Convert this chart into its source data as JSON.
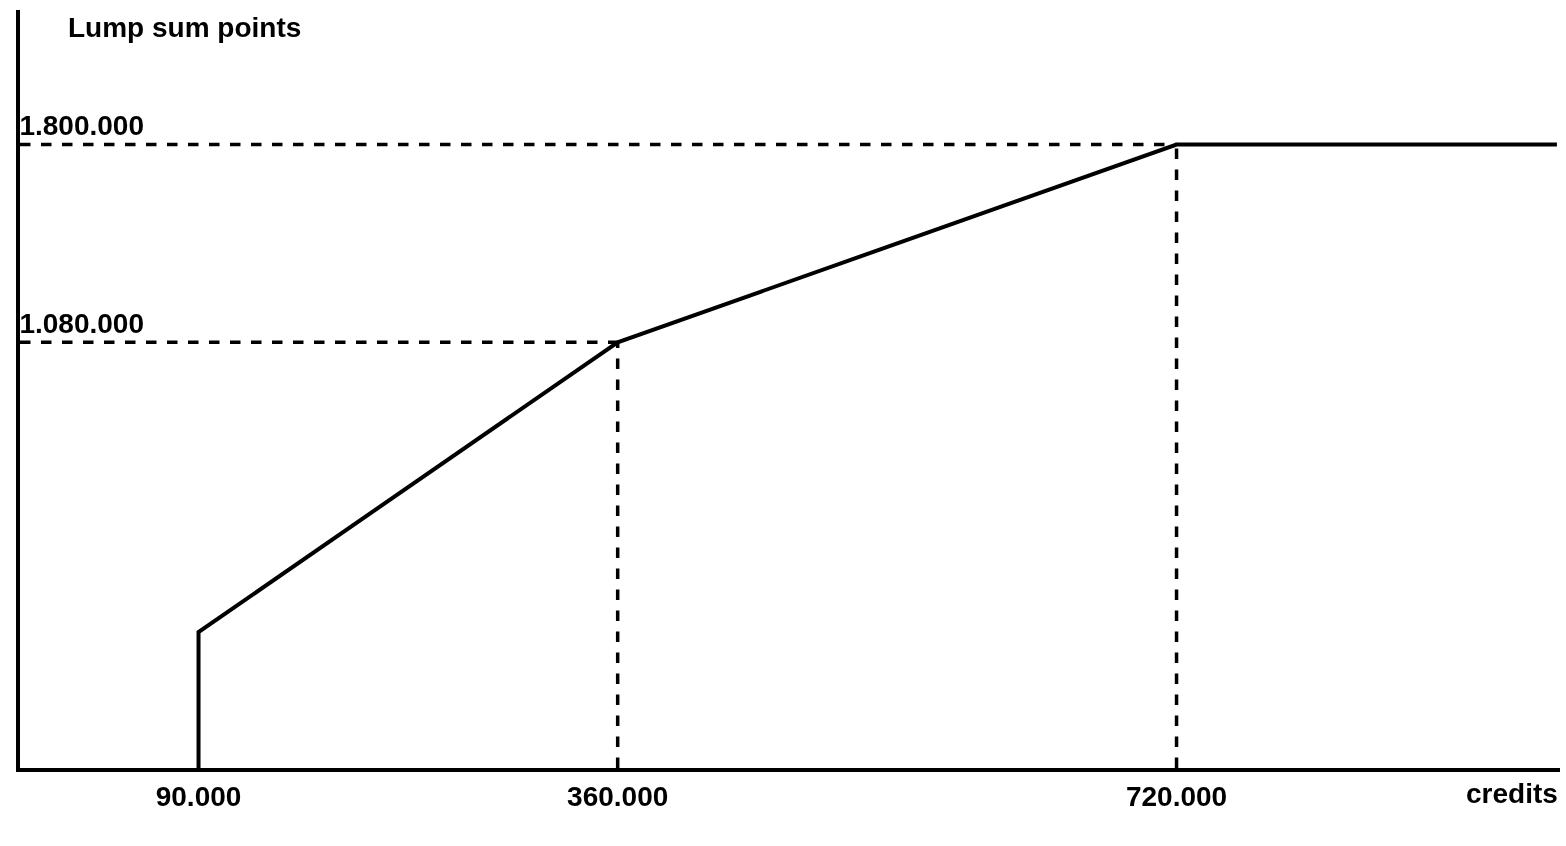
{
  "chart_data": {
    "type": "line",
    "xlabel": "credits",
    "ylabel": "Lump sum points",
    "x": [
      90000,
      90000,
      360000,
      720000,
      965000
    ],
    "series": [
      {
        "color": "#000000",
        "values": [
          -470000,
          25000,
          1080000,
          1800000,
          1800000
        ]
      }
    ],
    "xlim": [
      -25000,
      967000
    ],
    "ylim": [
      -470000,
      2290000
    ],
    "xticks": [
      {
        "value": 90000,
        "label": "90.000"
      },
      {
        "value": 360000,
        "label": "360.000"
      },
      {
        "value": 720000,
        "label": "720.000"
      }
    ],
    "yticks": [
      {
        "value": 1080000,
        "label": "1.080.000"
      },
      {
        "value": 1800000,
        "label": "1.800.000"
      }
    ],
    "ref_lines": [
      {
        "axis": "y",
        "value": 1080000,
        "color": "#000000",
        "line_style": "dashed"
      },
      {
        "axis": "y",
        "value": 1800000,
        "color": "#000000",
        "line_style": "dashed"
      },
      {
        "axis": "x",
        "value": 360000,
        "color": "#000000",
        "line_style": "dashed"
      },
      {
        "axis": "x",
        "value": 720000,
        "color": "#000000",
        "line_style": "dashed"
      }
    ],
    "marker": "none",
    "line_style": "solid"
  }
}
